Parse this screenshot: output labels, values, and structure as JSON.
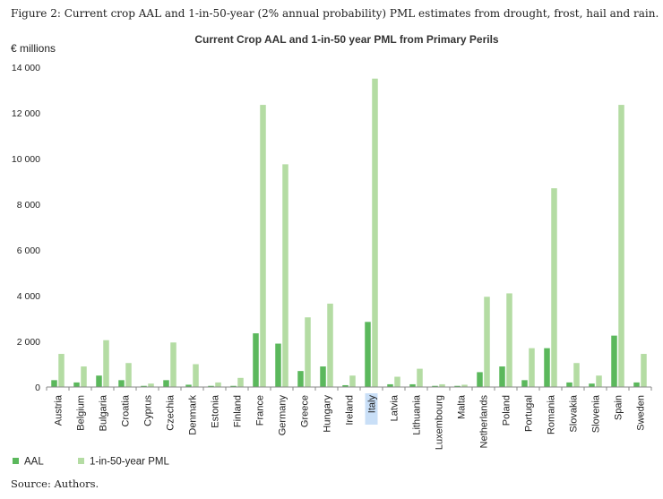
{
  "figure_caption": "Figure 2: Current crop AAL and 1-in-50-year (2% annual probability) PML estimates from drought, frost, hail and rain.",
  "source_note": "Source: Authors.",
  "colors": {
    "aal": "#5bb85c",
    "pml": "#b4dca3",
    "highlight": "#c9dff7",
    "axis": "#888888",
    "text": "#222222"
  },
  "chart_data": {
    "type": "bar",
    "title": "Current Crop AAL and 1-in-50 year PML from Primary Perils",
    "ylabel": "€ millions",
    "xlabel": "",
    "ylim": [
      0,
      14000
    ],
    "yticks": [
      0,
      2000,
      4000,
      6000,
      8000,
      10000,
      12000,
      14000
    ],
    "ytick_labels": [
      "0",
      "2 000",
      "4 000",
      "6 000",
      "8 000",
      "10 000",
      "12 000",
      "14 000"
    ],
    "highlighted_category": "Italy",
    "grid": false,
    "legend_position": "bottom-left",
    "categories": [
      "Austria",
      "Belgium",
      "Bulgaria",
      "Croatia",
      "Cyprus",
      "Czechia",
      "Denmark",
      "Estonia",
      "Finland",
      "France",
      "Germany",
      "Greece",
      "Hungary",
      "Ireland",
      "Italy",
      "Latvia",
      "Lithuania",
      "Luxembourg",
      "Malta",
      "Netherlands",
      "Poland",
      "Portugal",
      "Romania",
      "Slovakia",
      "Slovenia",
      "Spain",
      "Sweden"
    ],
    "series": [
      {
        "name": "AAL",
        "values": [
          300,
          200,
          500,
          300,
          50,
          300,
          100,
          50,
          50,
          2350,
          1900,
          700,
          900,
          80,
          2850,
          120,
          120,
          50,
          50,
          650,
          900,
          300,
          1700,
          200,
          150,
          2250,
          200
        ]
      },
      {
        "name": "1-in-50-year PML",
        "values": [
          1450,
          900,
          2050,
          1050,
          150,
          1950,
          1000,
          200,
          400,
          12350,
          9750,
          3050,
          3650,
          500,
          13500,
          450,
          800,
          120,
          100,
          3950,
          4100,
          1700,
          8700,
          1050,
          500,
          12350,
          1450
        ]
      }
    ]
  }
}
